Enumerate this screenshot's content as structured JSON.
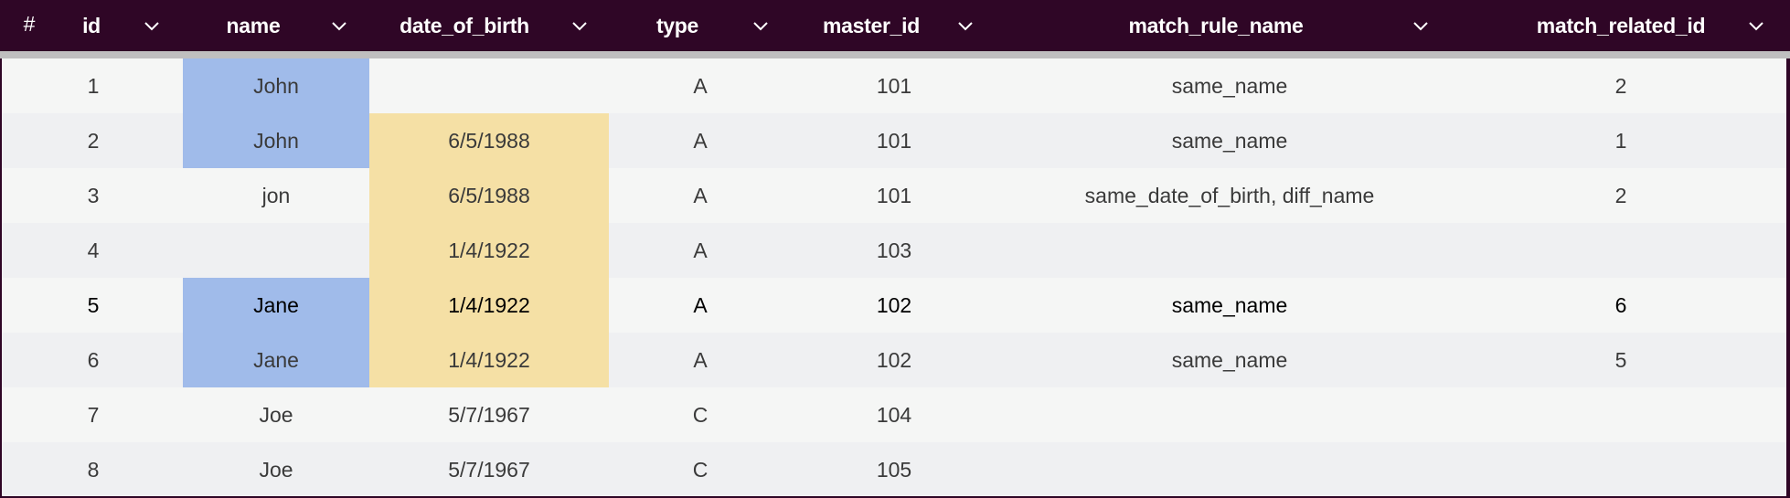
{
  "table": {
    "row_number_header": "#",
    "columns": [
      {
        "key": "id",
        "label": "id",
        "icon": "chevron-down-icon"
      },
      {
        "key": "name",
        "label": "name",
        "icon": "chevron-down-icon"
      },
      {
        "key": "date_of_birth",
        "label": "date_of_birth",
        "icon": "chevron-down-icon"
      },
      {
        "key": "type",
        "label": "type",
        "icon": "chevron-down-icon"
      },
      {
        "key": "master_id",
        "label": "master_id",
        "icon": "chevron-down-icon"
      },
      {
        "key": "match_rule_name",
        "label": "match_rule_name",
        "icon": "chevron-down-icon"
      },
      {
        "key": "match_related_id",
        "label": "match_related_id",
        "icon": "chevron-down-icon"
      }
    ],
    "rows": [
      {
        "id": "1",
        "name": "John",
        "date_of_birth": "",
        "type": "A",
        "master_id": "101",
        "match_rule_name": "same_name",
        "match_related_id": "2",
        "name_highlight": true,
        "dob_highlight": false
      },
      {
        "id": "2",
        "name": "John",
        "date_of_birth": "6/5/1988",
        "type": "A",
        "master_id": "101",
        "match_rule_name": "same_name",
        "match_related_id": "1",
        "name_highlight": true,
        "dob_highlight": true
      },
      {
        "id": "3",
        "name": "jon",
        "date_of_birth": "6/5/1988",
        "type": "A",
        "master_id": "101",
        "match_rule_name": "same_date_of_birth, diff_name",
        "match_related_id": "2",
        "name_highlight": false,
        "dob_highlight": true
      },
      {
        "id": "4",
        "name": "",
        "date_of_birth": "1/4/1922",
        "type": "A",
        "master_id": "103",
        "match_rule_name": "",
        "match_related_id": "",
        "name_highlight": false,
        "dob_highlight": true
      },
      {
        "id": "5",
        "name": "Jane",
        "date_of_birth": "1/4/1922",
        "type": "A",
        "master_id": "102",
        "match_rule_name": "same_name",
        "match_related_id": "6",
        "name_highlight": true,
        "dob_highlight": true
      },
      {
        "id": "6",
        "name": "Jane",
        "date_of_birth": "1/4/1922",
        "type": "A",
        "master_id": "102",
        "match_rule_name": "same_name",
        "match_related_id": "5",
        "name_highlight": true,
        "dob_highlight": true
      },
      {
        "id": "7",
        "name": "Joe",
        "date_of_birth": "5/7/1967",
        "type": "C",
        "master_id": "104",
        "match_rule_name": "",
        "match_related_id": "",
        "name_highlight": false,
        "dob_highlight": false
      },
      {
        "id": "8",
        "name": "Joe",
        "date_of_birth": "5/7/1967",
        "type": "C",
        "master_id": "105",
        "match_rule_name": "",
        "match_related_id": "",
        "name_highlight": false,
        "dob_highlight": false
      }
    ]
  },
  "colors": {
    "header_bg": "#2f0626",
    "header_text": "#ffffff",
    "row_odd": "#f5f6f5",
    "row_even": "#eff0f2",
    "name_highlight": "#a0bbea",
    "dob_highlight": "#f5e0a5",
    "cell_text": "#3a3a3a"
  }
}
